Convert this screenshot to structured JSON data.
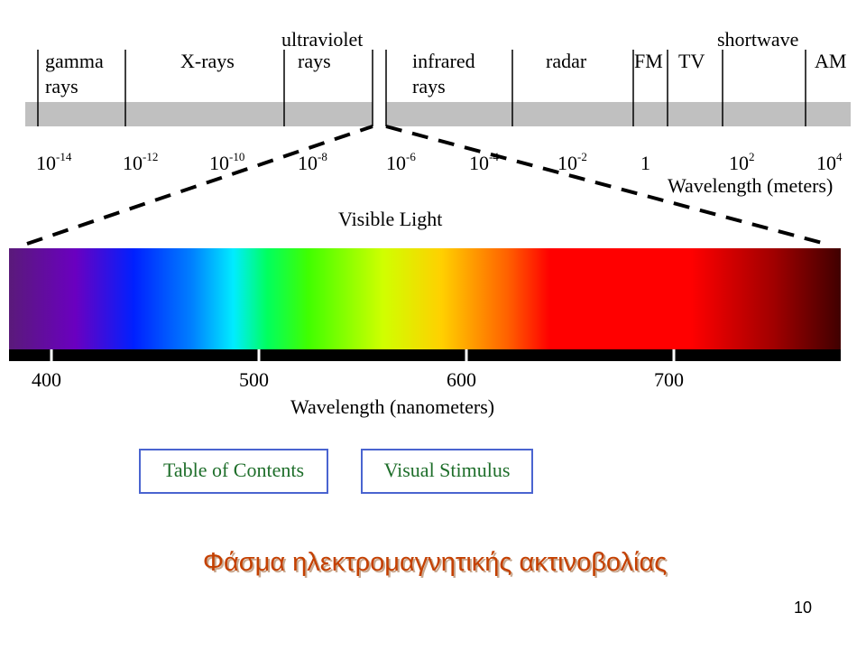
{
  "spectrum": {
    "bands": [
      {
        "lines": [
          "gamma",
          "rays"
        ]
      },
      {
        "lines": [
          "X-rays"
        ]
      },
      {
        "lines": [
          "ultraviolet",
          "rays"
        ]
      },
      {
        "lines": [
          "infrared",
          "rays"
        ]
      },
      {
        "lines": [
          "radar"
        ]
      },
      {
        "lines": [
          "FM"
        ]
      },
      {
        "lines": [
          "TV"
        ]
      },
      {
        "lines": [
          "shortwave"
        ]
      },
      {
        "lines": [
          "AM"
        ]
      }
    ],
    "wavelength_ticks": [
      {
        "base": "10",
        "exp": "-14"
      },
      {
        "base": "10",
        "exp": "-12"
      },
      {
        "base": "10",
        "exp": "-10"
      },
      {
        "base": "10",
        "exp": "-8"
      },
      {
        "base": "10",
        "exp": "-6"
      },
      {
        "base": "10",
        "exp": "-4"
      },
      {
        "base": "10",
        "exp": "-2"
      },
      {
        "base": "1"
      },
      {
        "base": "10",
        "exp": "2"
      },
      {
        "base": "10",
        "exp": "4"
      }
    ],
    "wavelength_label": "Wavelength (meters)",
    "visible_title": "Visible Light",
    "visible_ticks": [
      "400",
      "500",
      "600",
      "700"
    ],
    "visible_label": "Wavelength (nanometers)"
  },
  "buttons": [
    "Table of Contents",
    "Visual Stimulus"
  ],
  "title": "Φάσμα ηλεκτρομαγνητικής ακτινοβολίας",
  "page_number": "10"
}
